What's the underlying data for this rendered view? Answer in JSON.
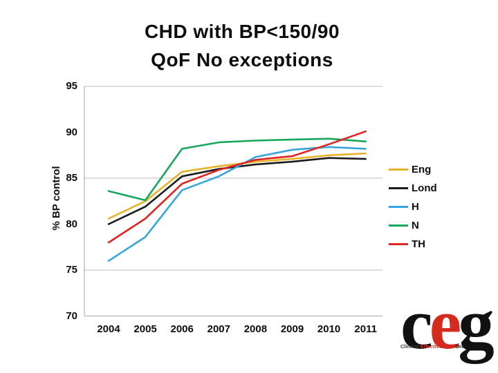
{
  "slide": {
    "title_line1": "CHD with BP<150/90",
    "title_line2": "QoF No exceptions"
  },
  "chart_data": {
    "type": "line",
    "title": "CHD with BP<150/90 QoF No exceptions",
    "xlabel": "",
    "ylabel": "% BP control",
    "x": [
      "2004",
      "2005",
      "2006",
      "2007",
      "2008",
      "2009",
      "2010",
      "2011"
    ],
    "ylim": [
      70,
      95
    ],
    "yticks": [
      95,
      90,
      85,
      80,
      75,
      70
    ],
    "gridlines_y": [
      95,
      85,
      75
    ],
    "legend_position": "right",
    "grid_color": "#c9c9c9",
    "axis_color": "#b3b3b3",
    "series": [
      {
        "name": "Eng",
        "color": "#e7b32a",
        "values": [
          80.6,
          82.5,
          85.7,
          86.3,
          86.8,
          87.1,
          87.5,
          87.7
        ]
      },
      {
        "name": "Lond",
        "color": "#1a1a1a",
        "values": [
          80.0,
          81.9,
          85.2,
          86.0,
          86.5,
          86.8,
          87.2,
          87.1
        ]
      },
      {
        "name": "H",
        "color": "#38a3dc",
        "values": [
          76.0,
          78.6,
          83.7,
          85.2,
          87.3,
          88.1,
          88.4,
          88.2
        ]
      },
      {
        "name": "N",
        "color": "#17a65a",
        "values": [
          83.6,
          82.6,
          88.2,
          88.9,
          89.1,
          89.2,
          89.3,
          89.0
        ]
      },
      {
        "name": "TH",
        "color": "#e02424",
        "values": [
          78.0,
          80.6,
          84.4,
          85.9,
          87.0,
          87.4,
          88.7,
          90.1
        ]
      }
    ]
  },
  "logo": {
    "letter1": "c",
    "letter2": "e",
    "letter3": "g",
    "accent_color": "#d42b1e",
    "sub_word1": "Clinical ",
    "sub_word2": "Effectiveness",
    "sub_word3": " Group"
  }
}
